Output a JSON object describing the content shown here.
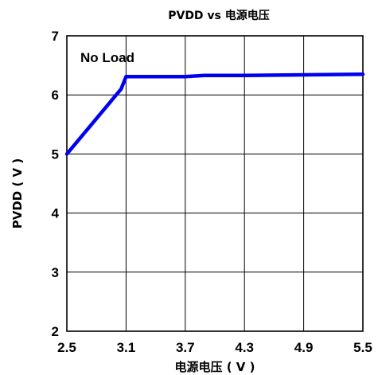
{
  "chart_data": {
    "type": "line",
    "title": "PVDD vs 电源电压",
    "xlabel": "电源电压 ( V )",
    "ylabel": "PVDD ( V )",
    "xlim": [
      2.5,
      5.5
    ],
    "ylim": [
      2,
      7
    ],
    "x_ticks": [
      "2.5",
      "3.1",
      "3.7",
      "4.3",
      "4.9",
      "5.5"
    ],
    "y_ticks": [
      "2",
      "3",
      "4",
      "5",
      "6",
      "7"
    ],
    "grid": true,
    "annotation": "No Load",
    "series": [
      {
        "color": "#0000ee",
        "x": [
          2.5,
          2.8,
          3.05,
          3.1,
          3.3,
          3.5,
          3.7,
          3.9,
          4.3,
          4.9,
          5.5
        ],
        "y": [
          5.0,
          5.6,
          6.1,
          6.31,
          6.31,
          6.31,
          6.31,
          6.33,
          6.33,
          6.34,
          6.35
        ]
      }
    ]
  }
}
